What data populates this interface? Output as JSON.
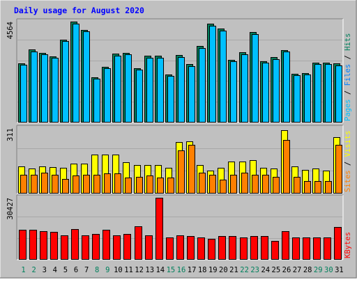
{
  "chart_data": {
    "type": "bar",
    "title": "Daily usage for August 2020",
    "categories": [
      "1",
      "2",
      "3",
      "4",
      "5",
      "6",
      "7",
      "8",
      "9",
      "10",
      "11",
      "12",
      "13",
      "14",
      "15",
      "16",
      "17",
      "18",
      "19",
      "20",
      "21",
      "22",
      "23",
      "24",
      "25",
      "26",
      "27",
      "28",
      "29",
      "30",
      "31"
    ],
    "weekend_days": [
      "1",
      "2",
      "8",
      "9",
      "15",
      "16",
      "22",
      "23",
      "29",
      "30"
    ],
    "panels": [
      {
        "id": "hits",
        "ymax_label": "4564",
        "ylim": [
          0,
          4564
        ],
        "labels": [
          "Pages",
          "Files",
          "Hits"
        ],
        "series": [
          {
            "name": "Hits",
            "color": "#00805c",
            "values": [
              2680,
              3290,
              3160,
              3000,
              3760,
              4564,
              4200,
              2050,
              2520,
              3110,
              3150,
              2460,
              3010,
              3020,
              2180,
              3050,
              2640,
              3460,
              4460,
              4240,
              2840,
              3180,
              4080,
              2780,
              2960,
              3280,
              2200,
              2250,
              2720,
              2720,
              2660
            ]
          },
          {
            "name": "Files",
            "color": "#00c0ff",
            "values": [
              2600,
              3210,
              3080,
              2920,
              3680,
              4480,
              4110,
              1980,
              2440,
              3030,
              3070,
              2390,
              2930,
              2940,
              2110,
              2970,
              2560,
              3380,
              4380,
              4160,
              2760,
              3100,
              4000,
              2700,
              2880,
              3200,
              2130,
              2180,
              2640,
              2640,
              2580
            ]
          }
        ]
      },
      {
        "id": "visits",
        "ymax_label": "311",
        "ylim": [
          0,
          311
        ],
        "labels": [
          "Sites",
          "Visits"
        ],
        "series": [
          {
            "name": "Visits",
            "color": "#ffff00",
            "values": [
              130,
              118,
              128,
              126,
              124,
              142,
              142,
              184,
              184,
              184,
              148,
              134,
              134,
              134,
              124,
              244,
              248,
              134,
              108,
              124,
              152,
              152,
              160,
              124,
              118,
              301,
              128,
              112,
              118,
              108,
              268
            ]
          },
          {
            "name": "Sites",
            "color": "#ff8000",
            "values": [
              90,
              90,
              100,
              90,
              70,
              85,
              90,
              90,
              95,
              95,
              75,
              80,
              85,
              75,
              75,
              205,
              230,
              100,
              90,
              65,
              90,
              100,
              90,
              90,
              80,
              256,
              80,
              60,
              60,
              60,
              230
            ]
          }
        ]
      },
      {
        "id": "kbytes",
        "ymax_label": "30427",
        "ylim": [
          0,
          30427
        ],
        "labels": [
          "KBytes"
        ],
        "series": [
          {
            "name": "KBytes",
            "color": "#ff0000",
            "values": [
              14600,
              14600,
              14100,
              13700,
              12100,
              14900,
              12100,
              12600,
              14600,
              12100,
              12600,
              16400,
              12100,
              30427,
              10800,
              12100,
              11700,
              10800,
              10200,
              11700,
              11700,
              10800,
              11700,
              11700,
              9300,
              14100,
              11100,
              10800,
              10800,
              10800,
              16100
            ]
          }
        ]
      }
    ]
  }
}
